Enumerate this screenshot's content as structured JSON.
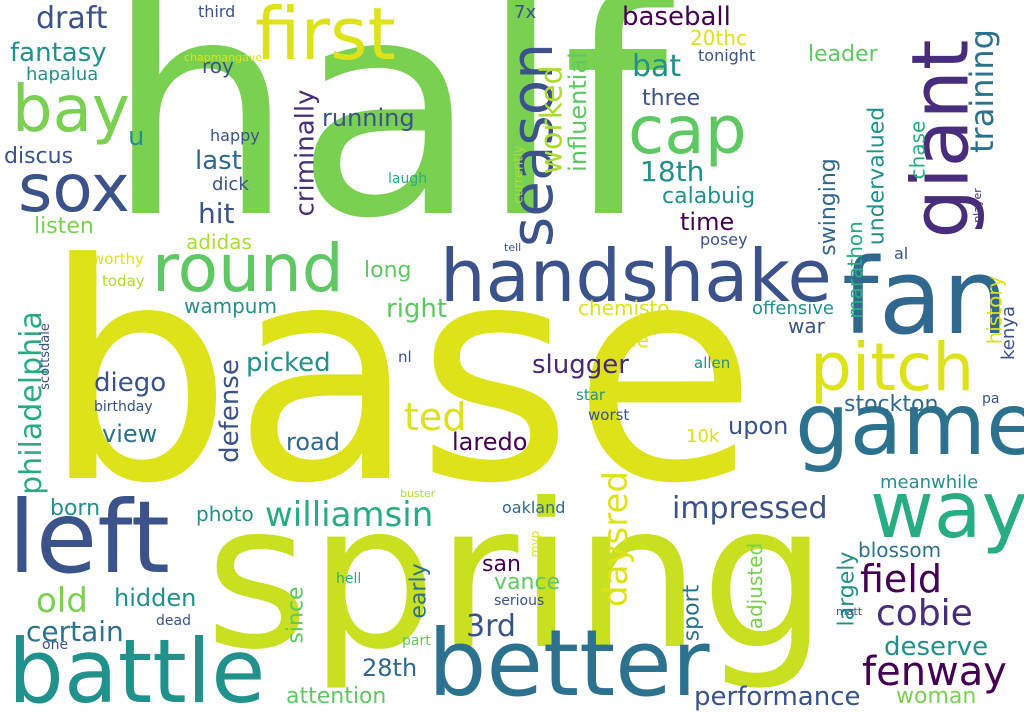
{
  "words": {
    "half": "half",
    "base": "base",
    "spring": "spring",
    "handshake": "handshake",
    "giant": "giant",
    "game": "game",
    "fan": "fan",
    "battle": "battle",
    "better": "better",
    "left": "left",
    "first": "first",
    "round": "round",
    "sox": "sox",
    "bay": "bay",
    "cap": "cap",
    "season": "season",
    "pitch": "pitch",
    "way": "way",
    "williamsin": "williamsin",
    "fenway": "fenway",
    "field": "field",
    "cobie": "cobie",
    "impressed": "impressed",
    "daysred": "daysred",
    "philadelphia": "philadelphia",
    "worked": "worked",
    "draft": "draft",
    "fantasy": "fantasy",
    "baseball": "baseball",
    "training": "training",
    "bat": "bat",
    "18th": "18th",
    "ted": "ted",
    "old": "old",
    "certain": "certain",
    "3rd": "3rd",
    "28th": "28th",
    "performance": "performance",
    "deserve": "deserve",
    "slugger": "slugger",
    "diego": "diego",
    "defense": "defense",
    "criminally": "criminally",
    "influential": "influential",
    "hit": "hit",
    "last": "last",
    "running": "running",
    "three": "three",
    "leader": "leader",
    "20thc": "20thc",
    "roy": "roy",
    "hapalua": "hapalua",
    "discus": "discus",
    "listen": "listen",
    "adidas": "adidas",
    "calabuig": "calabuig",
    "time": "time",
    "swinging": "swinging",
    "undervalued": "undervalued",
    "marathon": "marathon",
    "chase": "chase",
    "history": "history",
    "kenya": "kenya",
    "picked": "picked",
    "view": "view",
    "road": "road",
    "laredo": "laredo",
    "upon": "upon",
    "stockton": "stockton",
    "right": "right",
    "long": "long",
    "wampum": "wampum",
    "chemisto": "chemisto",
    "mile": "mile",
    "war": "war",
    "offensive": "offensive",
    "born": "born",
    "photo": "photo",
    "hidden": "hidden",
    "since": "since",
    "early": "early",
    "san": "san",
    "vance": "vance",
    "oakland": "oakland",
    "sport": "sport",
    "adjusted": "adjusted",
    "largely": "largely",
    "blossom": "blossom",
    "meanwhile": "meanwhile",
    "woman": "woman",
    "attention": "attention",
    "10k": "10k",
    "u": "u",
    "7x": "7x",
    "third": "third",
    "chapmangave": "chapmangave",
    "tonight": "tonight",
    "happy": "happy",
    "dick": "dick",
    "laugh": "laugh",
    "currently": "currently",
    "today": "today",
    "worthy": "worthy",
    "tell": "tell",
    "posey": "posey",
    "al": "al",
    "player": "player",
    "star": "star",
    "worst": "worst",
    "allen": "allen",
    "nl": "nl",
    "scottsdale": "scottsdale",
    "birthday": "birthday",
    "pa": "pa",
    "buster": "buster",
    "mvp": "mvp",
    "serious": "serious",
    "hell": "hell",
    "dead": "dead",
    "matt": "matt",
    "part": "part",
    "one": "one"
  },
  "palette": {
    "green": "#7ad151",
    "lime": "#dde318",
    "yellowgreen": "#addc30",
    "navy": "#3b528b",
    "purple": "#440154",
    "indigo": "#472d7b",
    "teal": "#21918c",
    "deepteal": "#2c728e",
    "seagreen": "#27ad81",
    "mint": "#5ec962",
    "blue": "#31688e",
    "violet": "#482878"
  }
}
